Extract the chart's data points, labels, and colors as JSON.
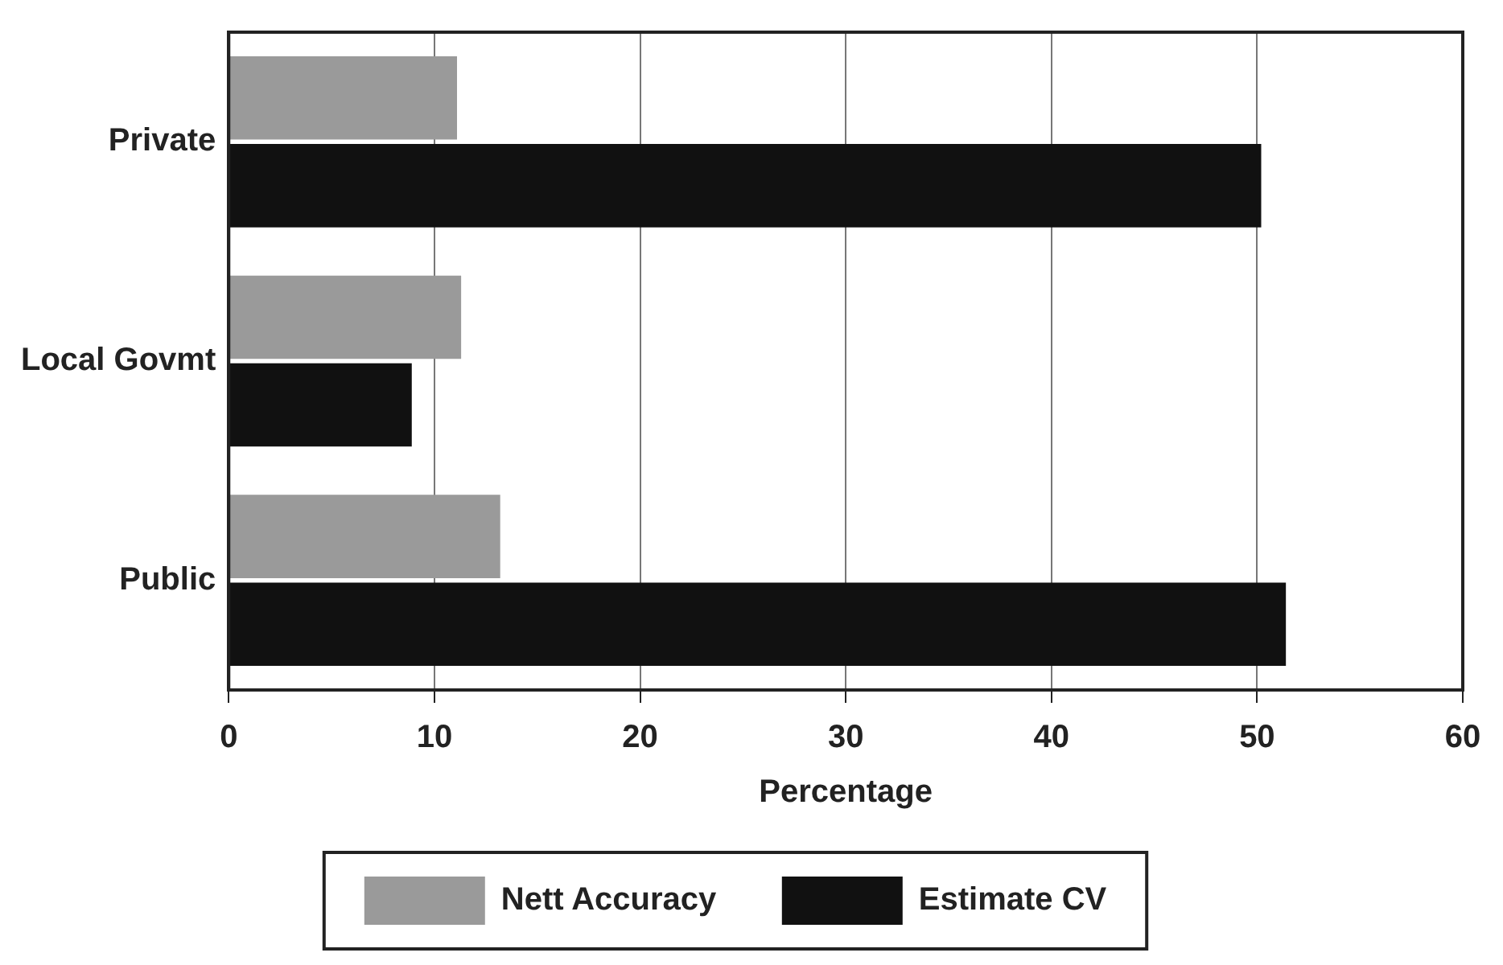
{
  "chart_data": {
    "type": "bar",
    "orientation": "horizontal",
    "categories": [
      "Private",
      "Local Govmt",
      "Public"
    ],
    "series": [
      {
        "name": "Nett Accuracy",
        "color": "#9a9a9a",
        "values": [
          11.1,
          11.3,
          13.2
        ]
      },
      {
        "name": "Estimate CV",
        "color": "#111111",
        "values": [
          50.2,
          8.9,
          51.4
        ]
      }
    ],
    "xlabel": "Percentage",
    "xlim": [
      0,
      60
    ],
    "xticks": [
      0,
      10,
      20,
      30,
      40,
      50,
      60
    ],
    "grid": "x",
    "legend": "bottom"
  }
}
